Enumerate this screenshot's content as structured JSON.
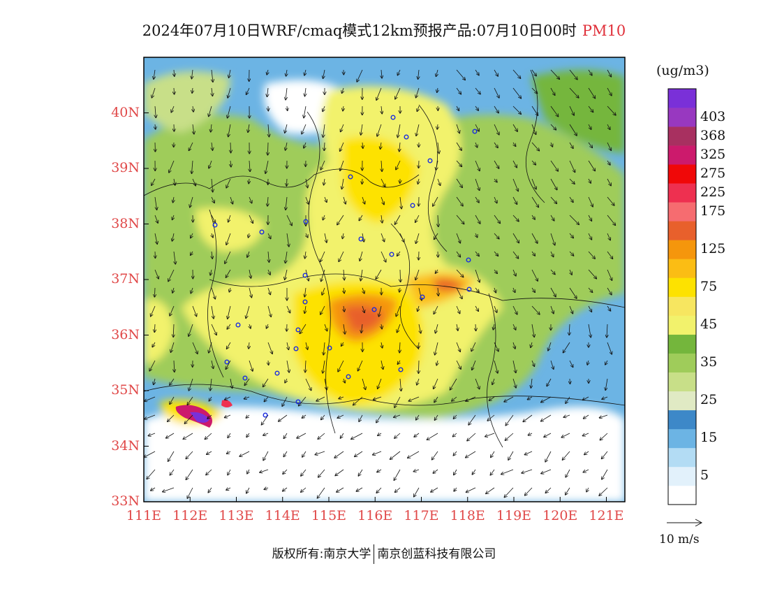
{
  "title": {
    "main": "2024年07月10日WRF/cmaq模式12km预报产品:07月10日00时",
    "pollutant": "PM10"
  },
  "map": {
    "lon_range": [
      111,
      121.4
    ],
    "lat_range": [
      33,
      41
    ],
    "x_ticks": [
      "111E",
      "112E",
      "113E",
      "114E",
      "115E",
      "116E",
      "117E",
      "118E",
      "119E",
      "120E",
      "121E"
    ],
    "y_ticks": [
      "33N",
      "34N",
      "35N",
      "36N",
      "37N",
      "38N",
      "39N",
      "40N"
    ]
  },
  "colorbar": {
    "unit": "(ug/m3)",
    "colors": [
      "#ffffff",
      "#e2f1fb",
      "#b3dcf4",
      "#6cb4e4",
      "#3d88c8",
      "#e0eac4",
      "#c8df88",
      "#9fcc5a",
      "#74b63c",
      "#f2f26c",
      "#f7e660",
      "#fde200",
      "#fbbd14",
      "#f5960c",
      "#e8602c",
      "#f66c70",
      "#ee3050",
      "#f00808",
      "#cc1a6c",
      "#a83060",
      "#9838c0",
      "#7a30d8"
    ],
    "labels": [
      "5",
      "15",
      "25",
      "35",
      "45",
      "75",
      "125",
      "175",
      "225",
      "275",
      "325",
      "368",
      "403"
    ]
  },
  "reference_vector": "10 m/s",
  "footer": {
    "left": "版权所有:南京大学",
    "right": "南京创蓝科技有限公司"
  }
}
